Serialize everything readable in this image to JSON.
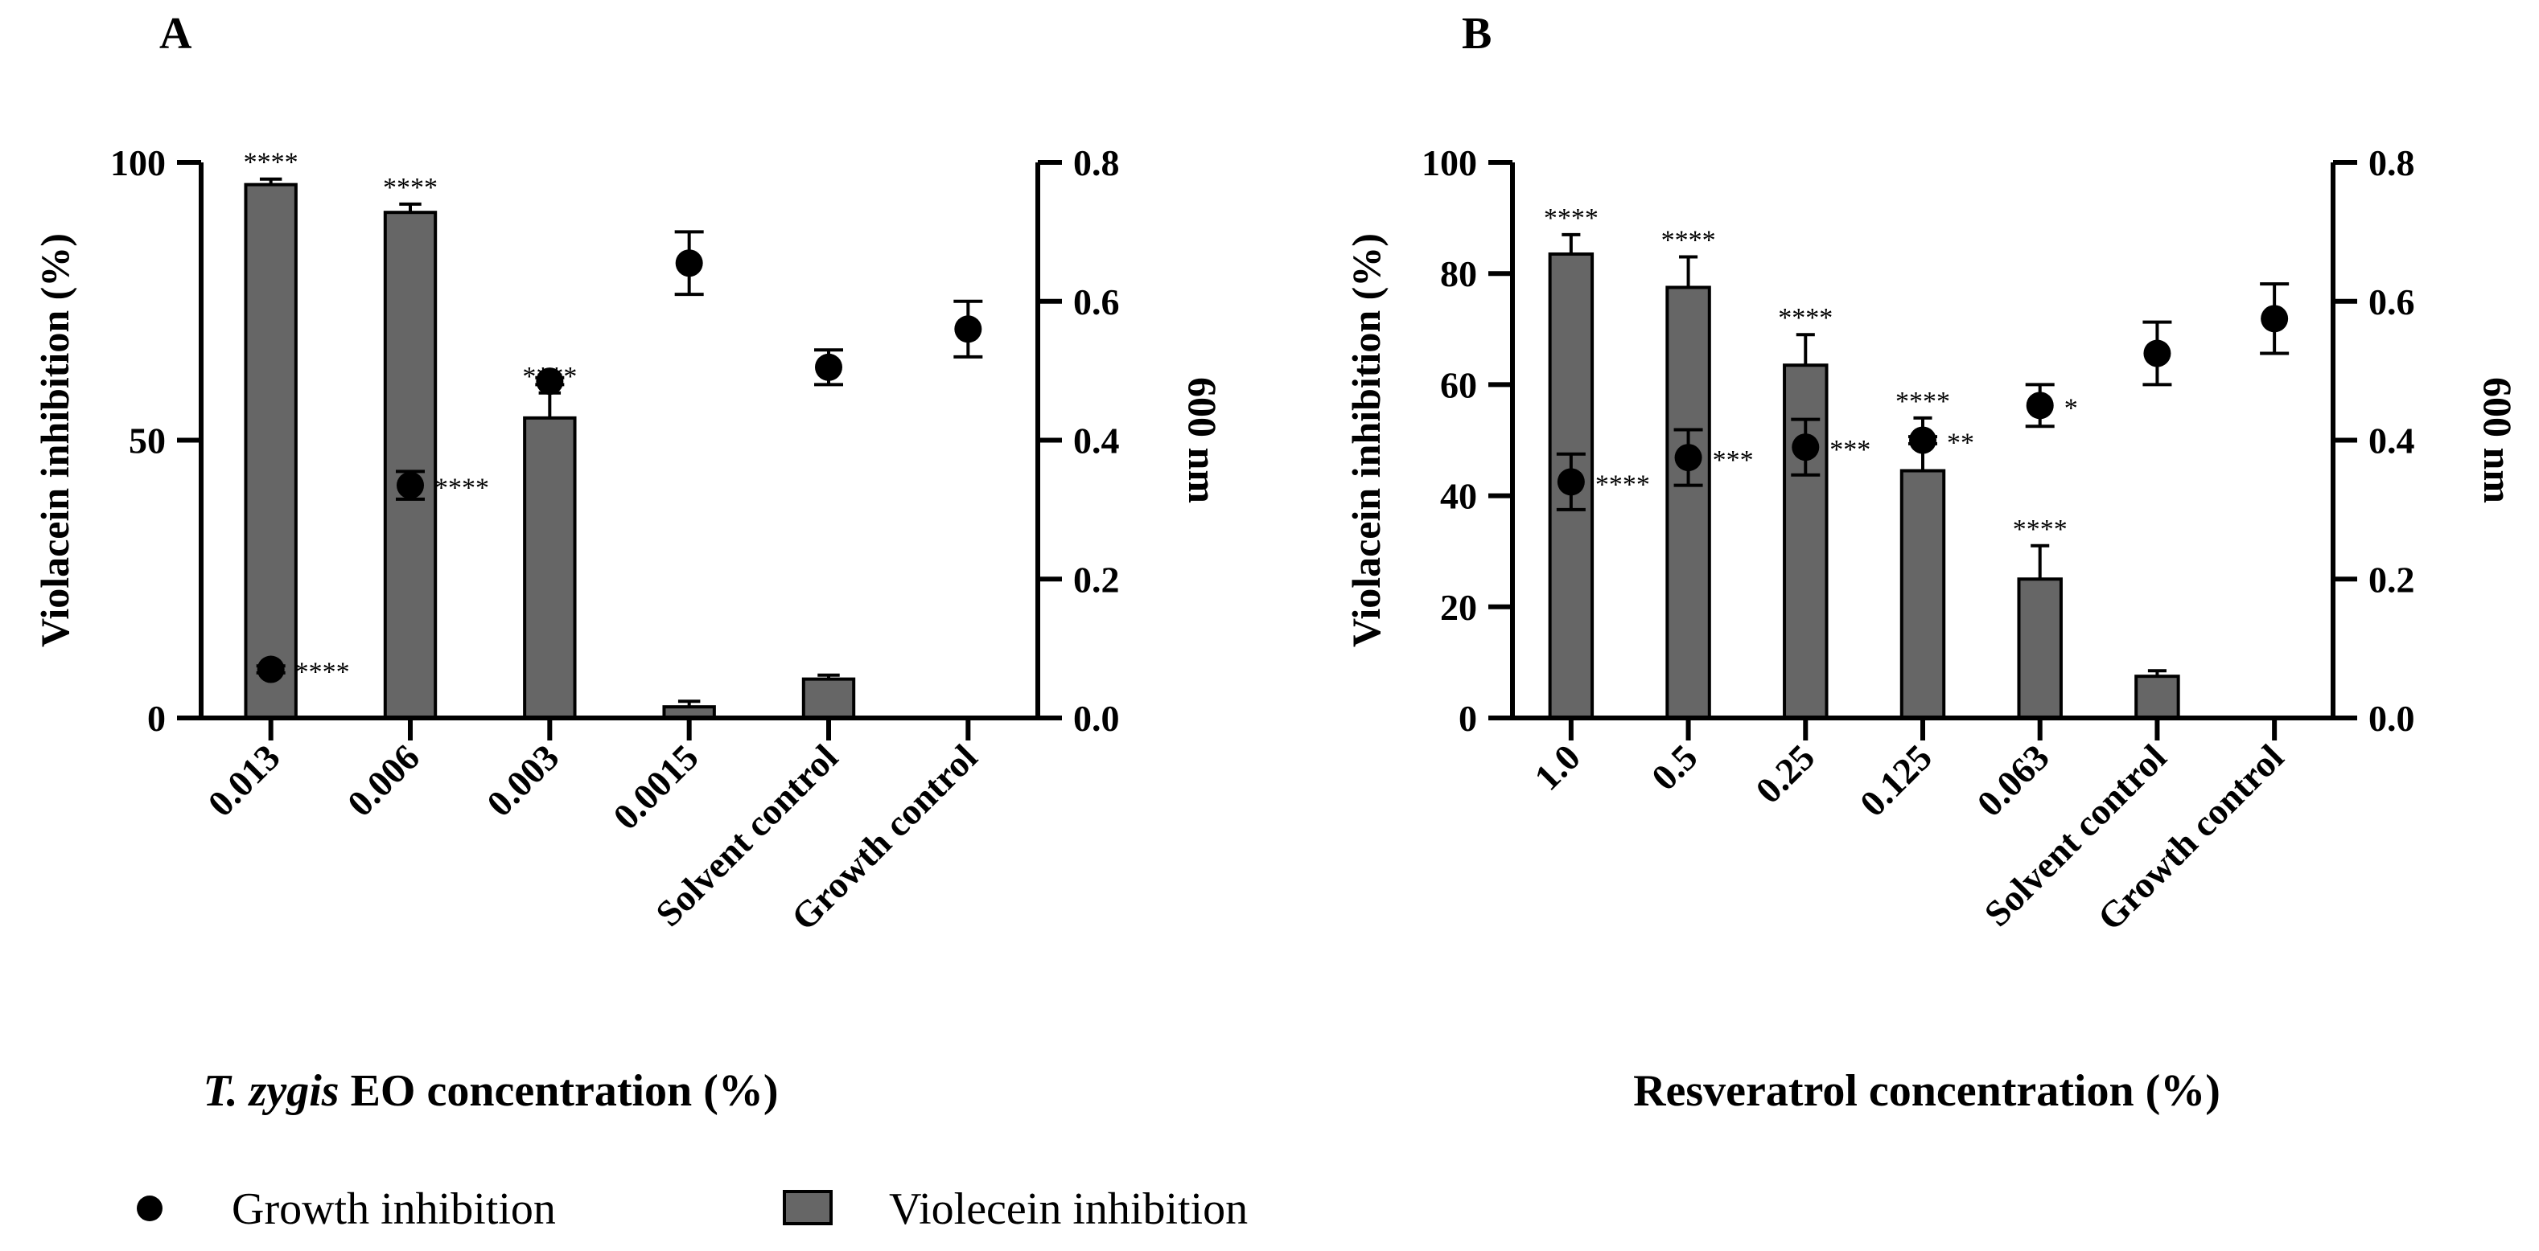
{
  "chart_data": [
    {
      "panel": "A",
      "type": "bar+scatter",
      "xlabel_italic": "T. zygis",
      "xlabel_rest": " EO concentration (%)",
      "ylabel_left": "Violacein inhibition (%)",
      "ylabel_right": "600 nm",
      "ylim_left": [
        0,
        100
      ],
      "ylim_right": [
        0,
        0.8
      ],
      "yticks_left": [
        "0",
        "50",
        "100"
      ],
      "yticks_right": [
        "0.0",
        "0.2",
        "0.4",
        "0.6",
        "0.8"
      ],
      "categories": [
        "0.013",
        "0.006",
        "0.003",
        "0.0015",
        "Solvent control",
        "Growth control"
      ],
      "bars": {
        "name": "Violecein inhibition",
        "values": [
          96,
          91,
          54,
          2,
          7,
          null
        ],
        "errors": [
          1,
          1.5,
          4.5,
          1,
          0.7,
          null
        ],
        "sig": [
          "****",
          "****",
          "****",
          "",
          "",
          ""
        ]
      },
      "points": {
        "name": "Growth inhibition",
        "values": [
          0.07,
          0.335,
          0.485,
          0.655,
          0.505,
          0.56
        ],
        "errors": [
          0.005,
          0.02,
          0.005,
          0.045,
          0.025,
          0.04
        ],
        "sig": [
          "****",
          "****",
          "",
          "",
          "",
          ""
        ]
      }
    },
    {
      "panel": "B",
      "type": "bar+scatter",
      "xlabel_italic": "",
      "xlabel_rest": "Resveratrol concentration (%)",
      "ylabel_left": "Violacein inhibition (%)",
      "ylabel_right": "600 nm",
      "ylim_left": [
        0,
        100
      ],
      "ylim_right": [
        0,
        0.8
      ],
      "yticks_left": [
        "0",
        "20",
        "40",
        "60",
        "80",
        "100"
      ],
      "yticks_right": [
        "0.0",
        "0.2",
        "0.4",
        "0.6",
        "0.8"
      ],
      "categories": [
        "1.0",
        "0.5",
        "0.25",
        "0.125",
        "0.063",
        "Solvent control",
        "Growth control"
      ],
      "bars": {
        "name": "Violecein inhibition",
        "values": [
          83.5,
          77.5,
          63.5,
          44.5,
          25,
          7.5,
          null
        ],
        "errors": [
          3.5,
          5.5,
          5.5,
          9.5,
          6,
          1,
          null
        ],
        "sig": [
          "****",
          "****",
          "****",
          "****",
          "****",
          "",
          ""
        ]
      },
      "points": {
        "name": "Growth inhibition",
        "values": [
          0.34,
          0.375,
          0.39,
          0.4,
          0.45,
          0.525,
          0.575
        ],
        "errors": [
          0.04,
          0.04,
          0.04,
          0.005,
          0.03,
          0.045,
          0.05
        ],
        "sig": [
          "****",
          "***",
          "***",
          "**",
          "*",
          "",
          ""
        ]
      }
    }
  ],
  "legend": {
    "growth_label": "Growth inhibition",
    "violacein_label": "Violecein inhibition"
  },
  "colors": {
    "bar_fill": "#666666",
    "ink": "#000000"
  }
}
